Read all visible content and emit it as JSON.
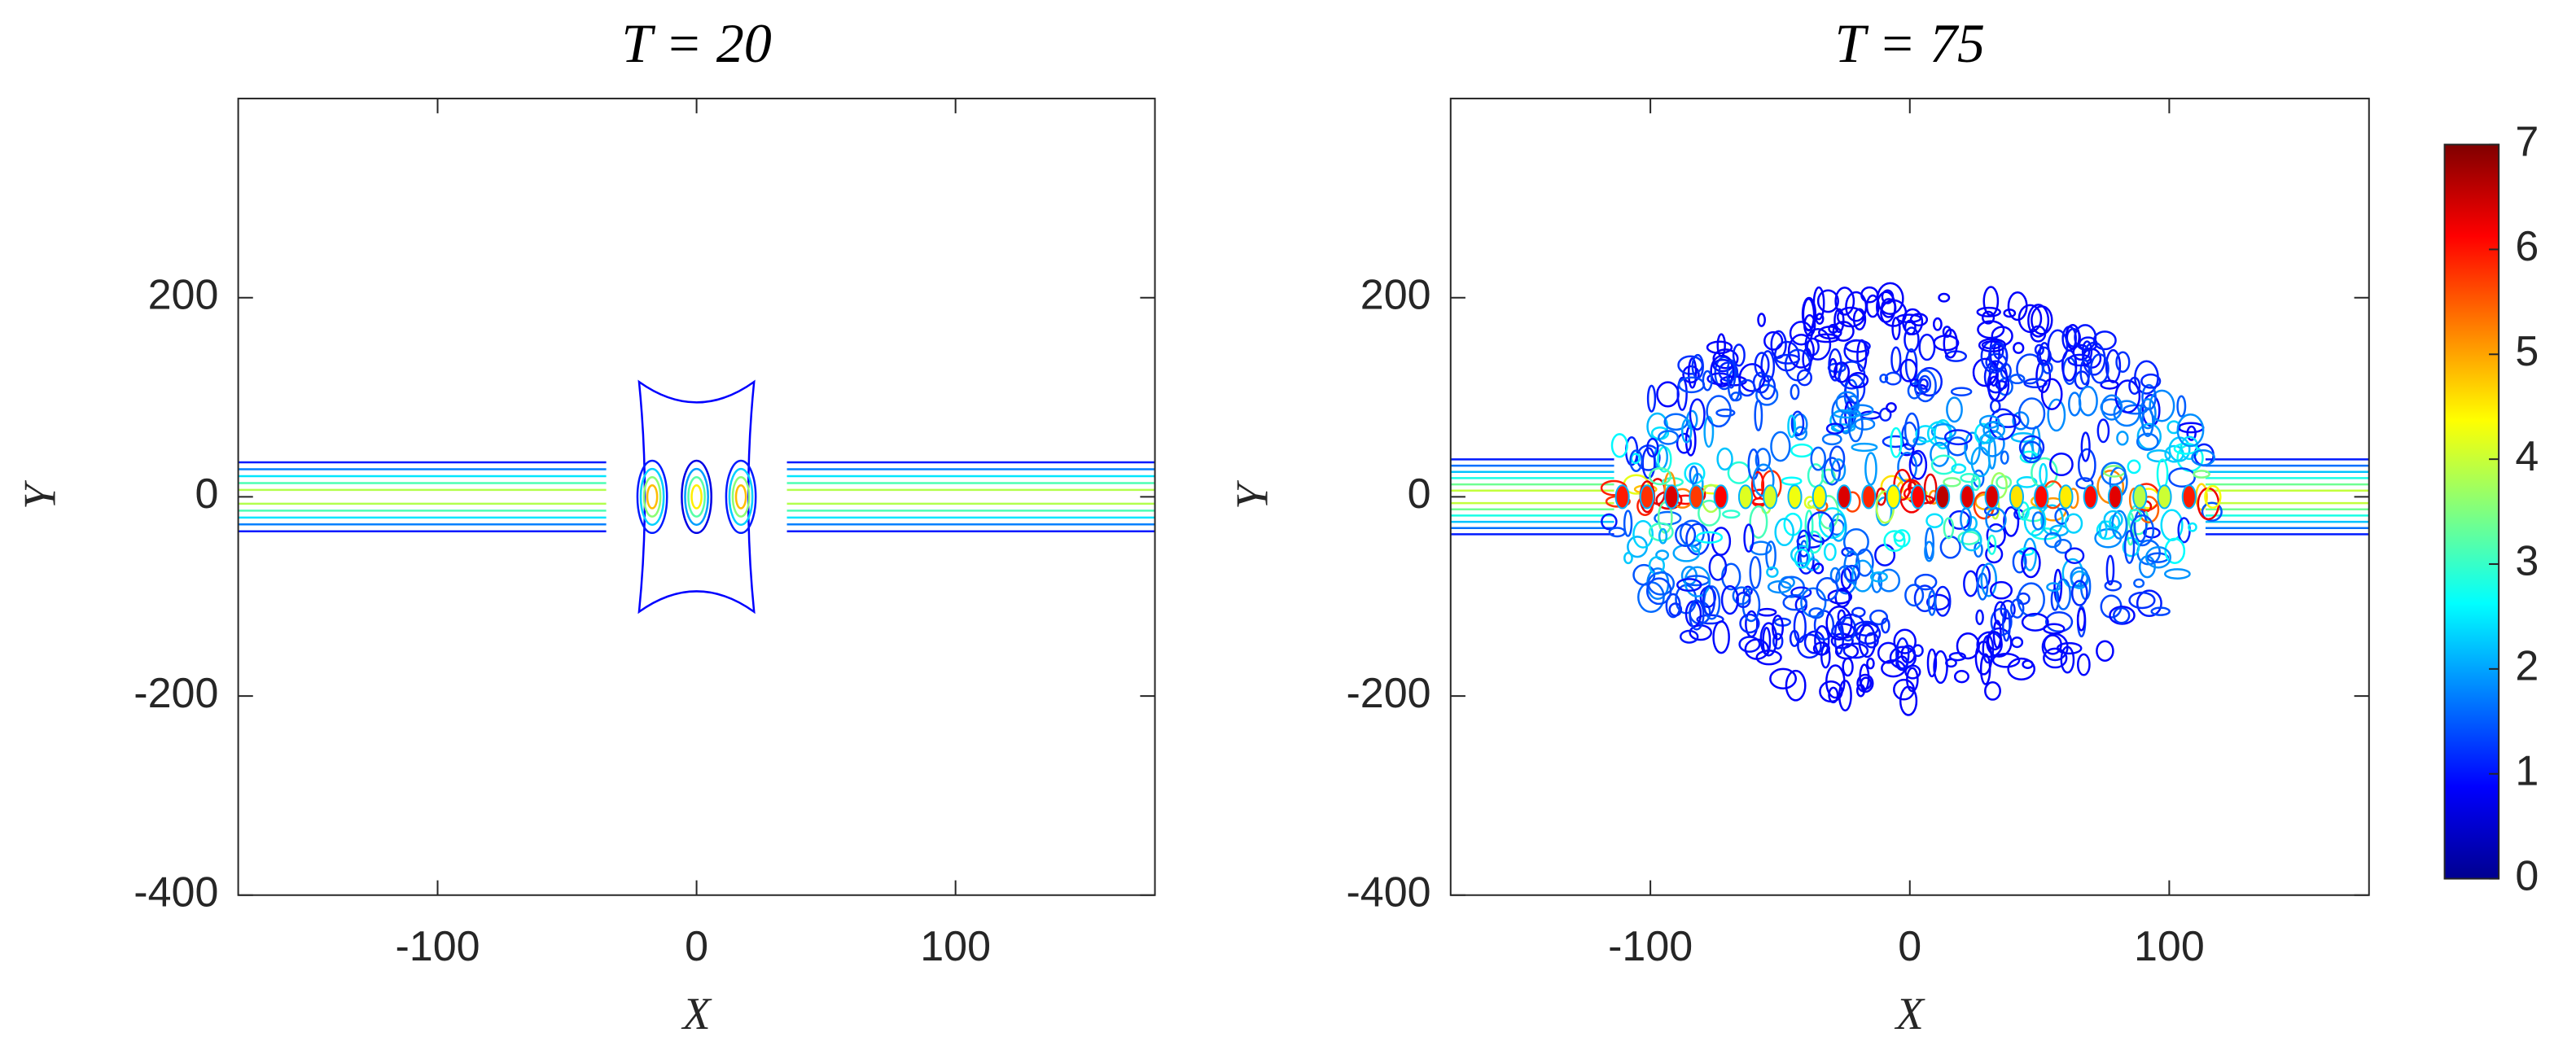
{
  "chart_data": [
    {
      "type": "contour",
      "title": "T = 20",
      "x_label": "X",
      "y_label": "Y",
      "xlim": [
        -177,
        177
      ],
      "ylim": [
        -400,
        400
      ],
      "xticks": [
        -100,
        0,
        100
      ],
      "yticks": [
        -400,
        -200,
        0,
        200
      ],
      "colormap": "jet"
    },
    {
      "type": "contour",
      "title": "T = 75",
      "x_label": "X",
      "y_label": "Y",
      "xlim": [
        -177,
        177
      ],
      "ylim": [
        -400,
        400
      ],
      "xticks": [
        -100,
        0,
        100
      ],
      "yticks": [
        -400,
        -200,
        0,
        200
      ],
      "colormap": "jet",
      "colorbar": {
        "lim": [
          0,
          7
        ],
        "ticks": [
          0,
          1,
          2,
          3,
          4,
          5,
          6,
          7
        ]
      }
    }
  ]
}
